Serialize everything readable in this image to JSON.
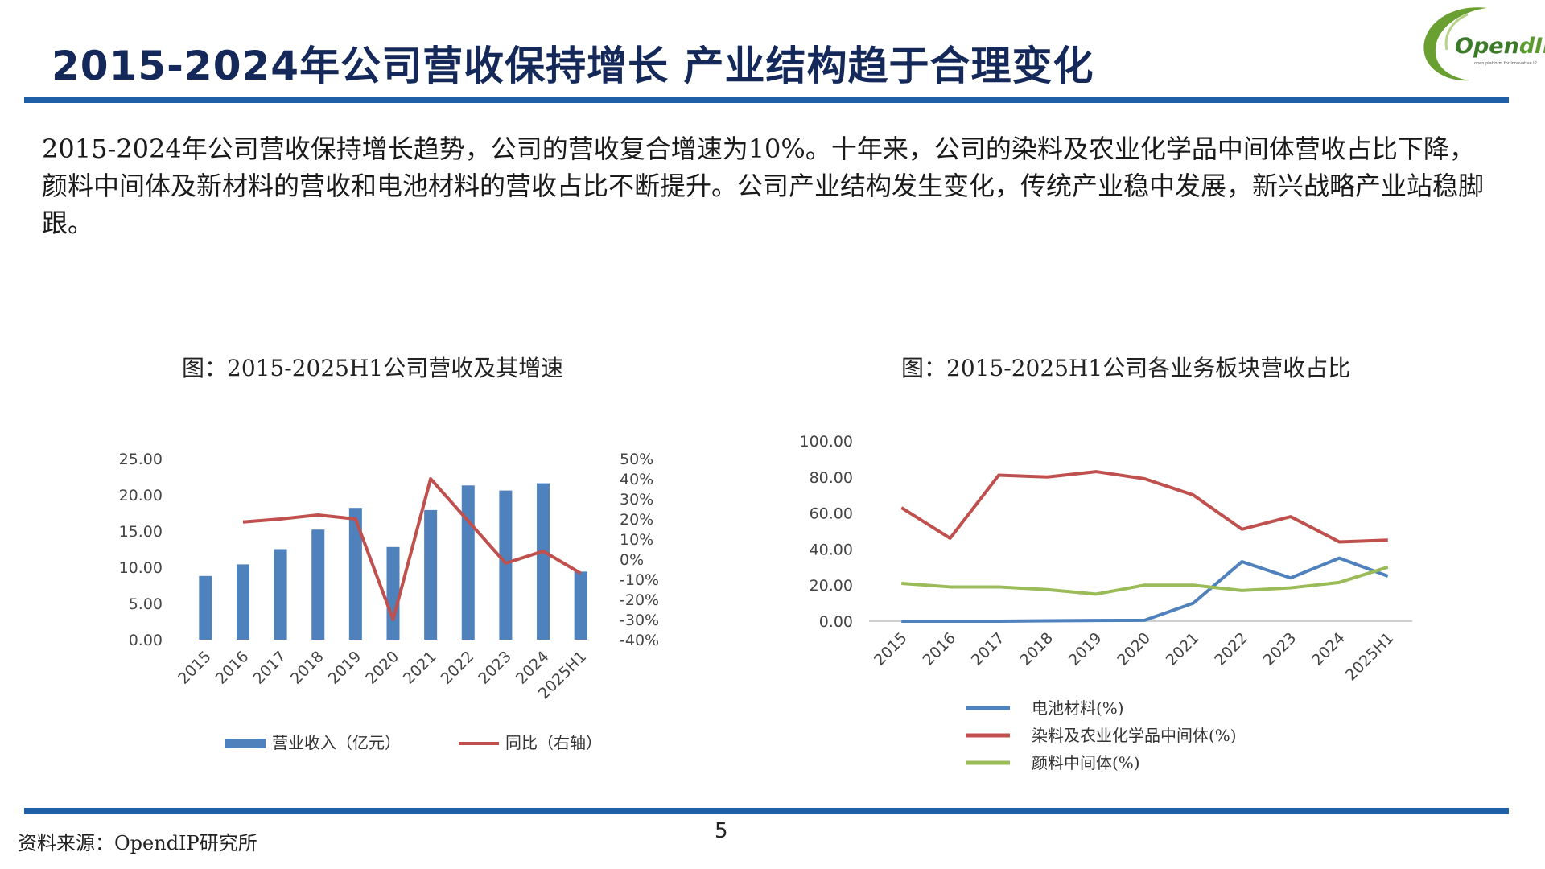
{
  "title": "2015-2024年公司营收保持增长  产业结构趋于合理变化",
  "logo": {
    "brand_main": "Open",
    "brand_ip": "dIP",
    "tagline": "open platform for innovative IP"
  },
  "paragraph": "2015-2024年公司营收保持增长趋势，公司的营收复合增速为10%。十年来，公司的染料及农业化学品中间体营收占比下降，颜料中间体及新材料的营收和电池材料的营收占比不断提升。公司产业结构发生变化，传统产业稳中发展，新兴战略产业站稳脚跟。",
  "source": "资料来源：OpendIP研究所",
  "page_number": "5",
  "colors": {
    "title": "#14285a",
    "rule": "#1f5fa8",
    "bar": "#4f81bd",
    "red": "#c0504d",
    "blue": "#4f81bd",
    "green": "#9bbb59"
  },
  "chart_data": [
    {
      "type": "bar",
      "title": "图：2015-2025H1公司营收及其增速",
      "categories": [
        "2015",
        "2016",
        "2017",
        "2018",
        "2019",
        "2020",
        "2021",
        "2022",
        "2023",
        "2024",
        "2025H1"
      ],
      "series": [
        {
          "name": "营业收入（亿元）",
          "type": "bar",
          "axis": "left",
          "values": [
            8.8,
            10.4,
            12.5,
            15.2,
            18.2,
            12.8,
            17.9,
            21.3,
            20.6,
            21.6,
            9.4
          ]
        },
        {
          "name": "同比（右轴）",
          "type": "line",
          "axis": "right",
          "values": [
            null,
            18.5,
            20,
            22,
            20,
            -30,
            40,
            19,
            -2,
            4,
            -7
          ]
        }
      ],
      "left_axis": {
        "ylim": [
          0,
          25
        ],
        "ticks": [
          "0.00",
          "5.00",
          "10.00",
          "15.00",
          "20.00",
          "25.00"
        ]
      },
      "right_axis": {
        "ylim": [
          -40,
          50
        ],
        "ticks": [
          "-40%",
          "-30%",
          "-20%",
          "-10%",
          "0%",
          "10%",
          "20%",
          "30%",
          "40%",
          "50%"
        ]
      },
      "legend": "bottom",
      "grid": false
    },
    {
      "type": "line",
      "title": "图：2015-2025H1公司各业务板块营收占比",
      "categories": [
        "2015",
        "2016",
        "2017",
        "2018",
        "2019",
        "2020",
        "2021",
        "2022",
        "2023",
        "2024",
        "2025H1"
      ],
      "series": [
        {
          "name": "电池材料(%)",
          "color": "#4f81bd",
          "values": [
            0,
            0,
            0,
            0.2,
            0.4,
            0.5,
            10,
            33,
            24,
            35,
            25
          ]
        },
        {
          "name": "染料及农业化学品中间体(%)",
          "color": "#c0504d",
          "values": [
            63,
            46,
            81,
            80,
            83,
            79,
            70,
            51,
            58,
            44,
            45
          ]
        },
        {
          "name": "颜料中间体(%)",
          "color": "#9bbb59",
          "values": [
            21,
            19,
            19,
            17.5,
            15,
            20,
            20,
            17,
            18.5,
            21.5,
            30
          ]
        }
      ],
      "ylim": [
        0,
        100
      ],
      "ticks": [
        "0.00",
        "20.00",
        "40.00",
        "60.00",
        "80.00",
        "100.00"
      ],
      "legend": "bottom",
      "grid": false
    }
  ]
}
